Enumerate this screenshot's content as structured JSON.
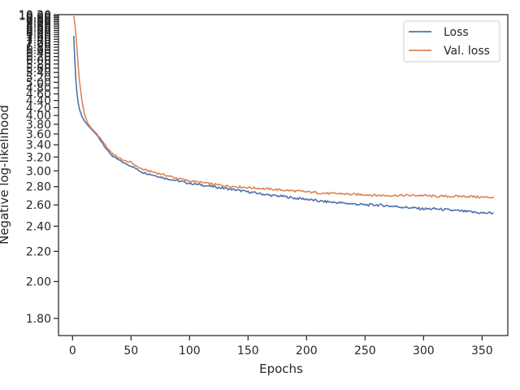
{
  "chart_data": {
    "type": "line",
    "xlabel": "Epochs",
    "ylabel": "Negative log-likelihood",
    "xlim": [
      -12,
      372
    ],
    "ylim": [
      1.72,
      10.2
    ],
    "y_scale": "reciprocal",
    "xticks": [
      0,
      50,
      100,
      150,
      200,
      250,
      300,
      350
    ],
    "yticks": [
      1.8,
      2.0,
      2.2,
      2.4,
      2.6,
      2.8,
      3.0,
      3.2,
      3.4,
      3.6,
      3.8,
      4.0,
      4.2,
      4.4,
      4.6,
      4.8,
      5.0,
      5.2,
      5.4,
      5.6,
      5.8,
      6.0,
      6.2,
      6.4,
      6.6,
      6.8,
      7.0,
      7.2,
      7.4,
      7.6,
      7.8,
      8.0,
      8.2,
      8.4,
      8.6,
      8.8,
      9.0,
      9.2,
      9.4,
      9.6,
      9.8,
      10.0,
      10.2
    ],
    "ytick_labels": [
      "1.80",
      "2.00",
      "2.20",
      "2.40",
      "2.60",
      "2.80",
      "3.00",
      "3.20",
      "3.40",
      "3.60",
      "3.80",
      "4.00",
      "4.20",
      "4.40",
      "4.60",
      "4.80",
      "5.00",
      "5.20",
      "5.40",
      "5.60",
      "5.80",
      "6.00",
      "6.20",
      "6.40",
      "6.60",
      "6.80",
      "7.00",
      "7.20",
      "7.40",
      "7.60",
      "7.80",
      "8.00",
      "8.20",
      "8.40",
      "8.60",
      "8.80",
      "9.00",
      "9.20",
      "9.40",
      "9.60",
      "9.80",
      "10.00",
      "10.20"
    ],
    "grid": false,
    "legend_position": "top-right",
    "series": [
      {
        "name": "Loss",
        "color": "#4c72b0",
        "x": [
          1,
          2,
          3,
          4,
          5,
          6,
          8,
          10,
          13,
          16,
          20,
          25,
          30,
          35,
          40,
          45,
          50,
          55,
          60,
          70,
          80,
          90,
          100,
          110,
          120,
          130,
          140,
          150,
          160,
          170,
          180,
          190,
          200,
          210,
          220,
          230,
          240,
          250,
          260,
          270,
          280,
          290,
          300,
          310,
          320,
          330,
          340,
          350,
          360
        ],
        "y": [
          7.7,
          5.9,
          5.0,
          4.55,
          4.3,
          4.15,
          3.98,
          3.88,
          3.78,
          3.7,
          3.6,
          3.45,
          3.3,
          3.2,
          3.15,
          3.1,
          3.07,
          3.02,
          2.98,
          2.94,
          2.9,
          2.87,
          2.84,
          2.82,
          2.8,
          2.78,
          2.76,
          2.74,
          2.72,
          2.7,
          2.69,
          2.67,
          2.66,
          2.64,
          2.63,
          2.62,
          2.61,
          2.6,
          2.6,
          2.59,
          2.58,
          2.57,
          2.56,
          2.56,
          2.55,
          2.54,
          2.53,
          2.52,
          2.52
        ]
      },
      {
        "name": "Val. loss",
        "color": "#dd8452",
        "x": [
          1,
          2,
          3,
          4,
          5,
          6,
          8,
          10,
          13,
          16,
          20,
          25,
          30,
          35,
          40,
          45,
          50,
          55,
          60,
          70,
          80,
          90,
          100,
          110,
          120,
          130,
          140,
          150,
          160,
          170,
          180,
          190,
          200,
          210,
          220,
          230,
          240,
          250,
          260,
          270,
          280,
          290,
          300,
          310,
          320,
          330,
          340,
          350,
          360
        ],
        "y": [
          10.0,
          9.0,
          7.6,
          6.5,
          5.6,
          5.0,
          4.4,
          4.05,
          3.82,
          3.72,
          3.62,
          3.48,
          3.34,
          3.24,
          3.18,
          3.14,
          3.12,
          3.06,
          3.02,
          2.98,
          2.94,
          2.9,
          2.87,
          2.85,
          2.83,
          2.81,
          2.8,
          2.79,
          2.78,
          2.77,
          2.76,
          2.75,
          2.74,
          2.73,
          2.72,
          2.72,
          2.71,
          2.71,
          2.7,
          2.7,
          2.7,
          2.7,
          2.7,
          2.69,
          2.69,
          2.69,
          2.69,
          2.68,
          2.68
        ]
      }
    ]
  }
}
